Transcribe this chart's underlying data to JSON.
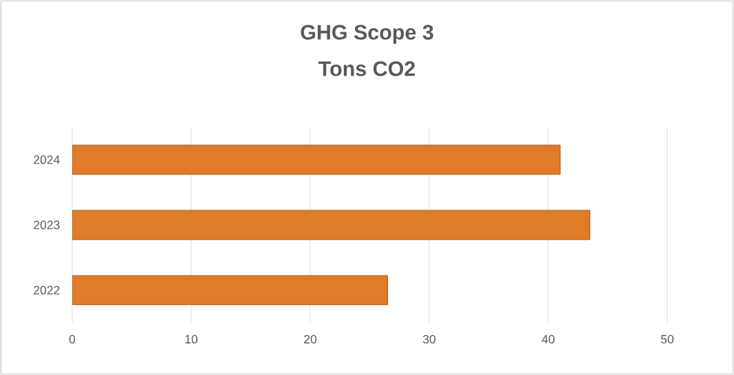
{
  "chart_data": {
    "type": "bar",
    "orientation": "horizontal",
    "title": "GHG Scope 3",
    "subtitle": "Tons CO2",
    "categories": [
      "2024",
      "2023",
      "2022"
    ],
    "values": [
      41,
      43.5,
      26.5
    ],
    "color": "#e07b27",
    "xlim": [
      0,
      50
    ],
    "xticks": [
      0,
      10,
      20,
      30,
      40,
      50
    ],
    "grid": "x"
  }
}
